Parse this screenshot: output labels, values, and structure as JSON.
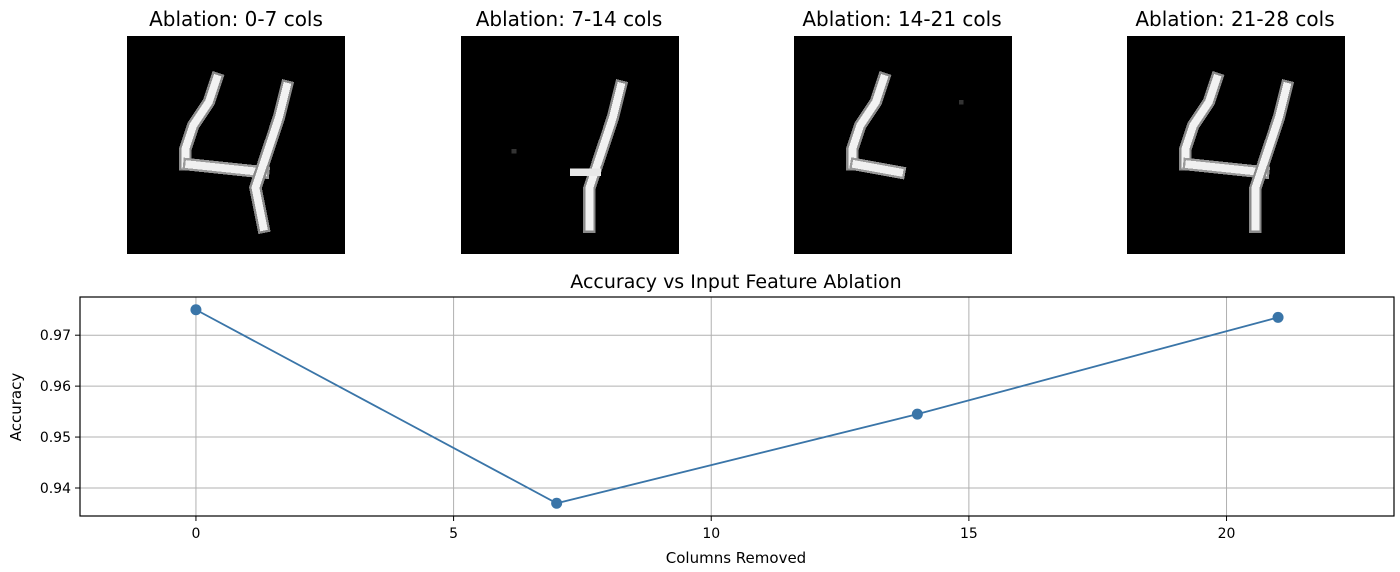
{
  "panels": [
    {
      "title": "Ablation: 0-7 cols",
      "image": "mnist-digit-4-columns-0-7-removed"
    },
    {
      "title": "Ablation: 7-14 cols",
      "image": "mnist-digit-4-columns-7-14-removed"
    },
    {
      "title": "Ablation: 14-21 cols",
      "image": "mnist-digit-4-columns-14-21-removed"
    },
    {
      "title": "Ablation: 21-28 cols",
      "image": "mnist-digit-4-columns-21-28-removed"
    }
  ],
  "chart_data": {
    "type": "line",
    "title": "Accuracy vs Input Feature Ablation",
    "xlabel": "Columns Removed",
    "ylabel": "Accuracy",
    "x": [
      0,
      7,
      14,
      21
    ],
    "series": [
      {
        "values": [
          0.975,
          0.937,
          0.9545,
          0.9735
        ],
        "color": "#3a75a8",
        "marker": "circle"
      }
    ],
    "xlim": [
      -2.25,
      23.25
    ],
    "ylim": [
      0.9345,
      0.9775
    ],
    "xticks": [
      0,
      5,
      10,
      15,
      20
    ],
    "yticks": [
      0.94,
      0.95,
      0.96,
      0.97
    ],
    "ytick_labels": [
      "0.94",
      "0.95",
      "0.96",
      "0.97"
    ],
    "grid": true
  }
}
